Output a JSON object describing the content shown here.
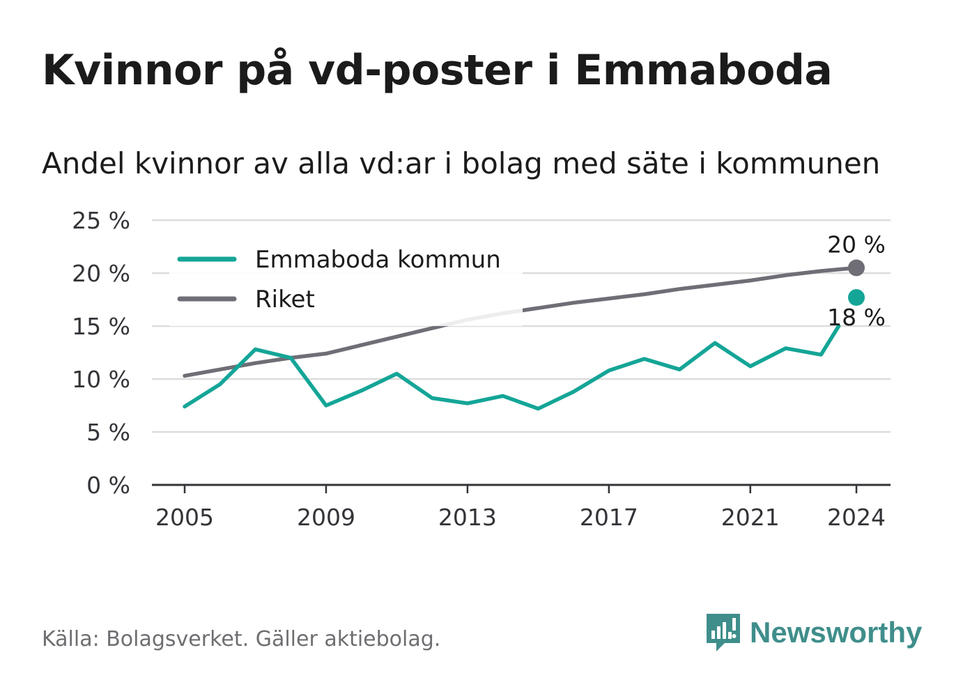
{
  "title": "Kvinnor på vd-poster i Emmaboda",
  "subtitle": "Andel kvinnor av alla vd:ar i bolag med säte i kommunen",
  "source": "Källa: Bolagsverket. Gäller aktiebolag.",
  "brand": {
    "name": "Newsworthy",
    "icon": "newsworthy-logo-icon",
    "color": "#3f8e8b"
  },
  "chart_data": {
    "type": "line",
    "x": [
      2005,
      2006,
      2007,
      2008,
      2009,
      2010,
      2011,
      2012,
      2013,
      2014,
      2015,
      2016,
      2017,
      2018,
      2019,
      2020,
      2021,
      2022,
      2023,
      2024
    ],
    "x_ticks": [
      2005,
      2009,
      2013,
      2017,
      2021,
      2024
    ],
    "x_tick_labels": [
      "2005",
      "2009",
      "2013",
      "2017",
      "2021",
      "2024"
    ],
    "ylim": [
      0,
      25
    ],
    "y_ticks": [
      0,
      5,
      10,
      15,
      20,
      25
    ],
    "y_tick_labels": [
      "0 %",
      "5 %",
      "10 %",
      "15 %",
      "20 %",
      "25 %"
    ],
    "grid": true,
    "legend_position": "top-left",
    "series": [
      {
        "name": "Emmaboda kommun",
        "color": "#14a597",
        "values": [
          7.4,
          9.5,
          12.8,
          12.0,
          7.5,
          8.9,
          10.5,
          8.2,
          7.7,
          8.4,
          7.2,
          8.8,
          10.8,
          11.9,
          10.9,
          13.4,
          11.2,
          12.9,
          12.3,
          17.7
        ],
        "end_label": "18 %"
      },
      {
        "name": "Riket",
        "color": "#6f6e76",
        "values": [
          10.3,
          10.9,
          11.5,
          12.0,
          12.4,
          13.2,
          14.0,
          14.8,
          15.6,
          16.2,
          16.7,
          17.2,
          17.6,
          18.0,
          18.5,
          18.9,
          19.3,
          19.8,
          20.2,
          20.5
        ],
        "end_label": "20 %"
      }
    ]
  }
}
